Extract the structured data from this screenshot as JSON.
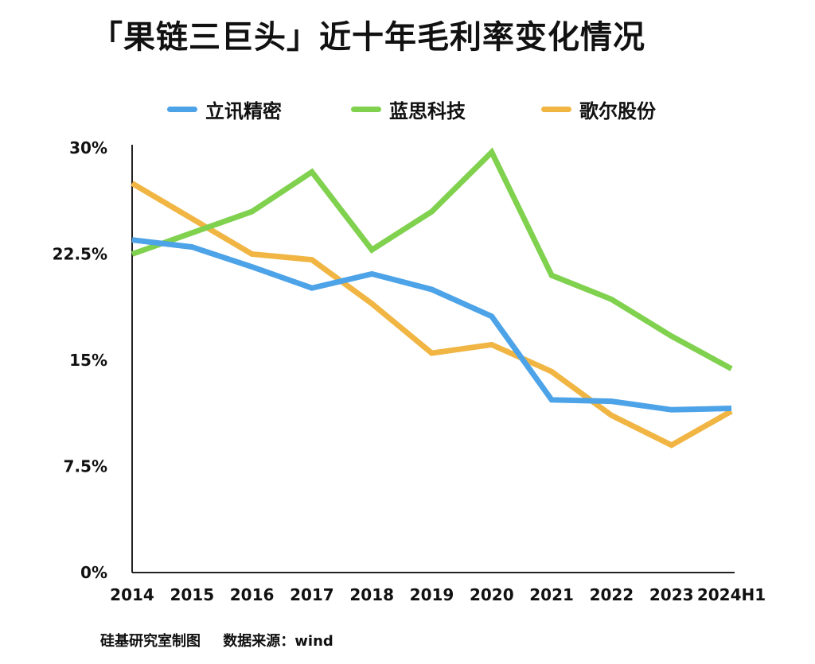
{
  "chart_data": {
    "type": "line",
    "title": "「果链三巨头」近十年毛利率变化情况",
    "categories": [
      "2014",
      "2015",
      "2016",
      "2017",
      "2018",
      "2019",
      "2020",
      "2021",
      "2022",
      "2023",
      "2024H1"
    ],
    "series": [
      {
        "name": "立讯精密",
        "color": "#4da3e8",
        "values": [
          23.5,
          23.0,
          21.6,
          20.1,
          21.1,
          20.0,
          18.1,
          12.2,
          12.1,
          11.5,
          11.6
        ]
      },
      {
        "name": "蓝思科技",
        "color": "#7fd14e",
        "values": [
          22.5,
          24.0,
          25.5,
          28.3,
          22.8,
          25.5,
          29.7,
          21.0,
          19.3,
          16.7,
          14.4
        ]
      },
      {
        "name": "歌尔股份",
        "color": "#f0b542",
        "values": [
          27.5,
          25.0,
          22.5,
          22.1,
          19.0,
          15.5,
          16.1,
          14.2,
          11.1,
          9.0,
          11.4
        ]
      }
    ],
    "y_ticks": [
      {
        "value": 0,
        "label": "0%"
      },
      {
        "value": 7.5,
        "label": "7.5%"
      },
      {
        "value": 15,
        "label": "15%"
      },
      {
        "value": 22.5,
        "label": "22.5%"
      },
      {
        "value": 30,
        "label": "30%"
      }
    ],
    "ylim": [
      0,
      30
    ],
    "grid": false,
    "legend_position": "top"
  },
  "footer": {
    "maker": "硅基研究室制图",
    "source": "数据来源：wind"
  }
}
